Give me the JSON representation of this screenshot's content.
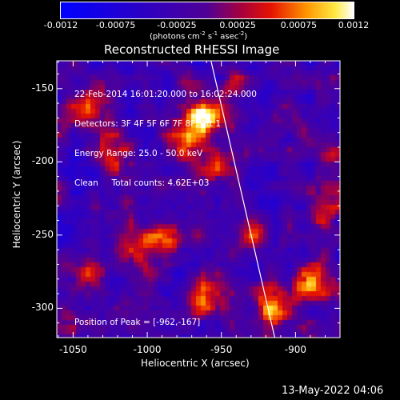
{
  "colors": {
    "background": "#000000",
    "text": "#ffffff",
    "frame": "#ffffff",
    "limb": "#ffffff"
  },
  "colorbar": {
    "tick_labels": [
      "-0.0012",
      "-0.00075",
      "-0.00025",
      "0.00025",
      "0.00075",
      "0.0012"
    ],
    "unit": {
      "prefix": "(photons cm",
      "exp1": "-2",
      "mid1": " s",
      "exp2": "-1",
      "mid2": " asec",
      "exp3": "-2",
      "suffix": ")"
    },
    "range": [
      -0.0012,
      0.0012
    ]
  },
  "chart_data": {
    "type": "heatmap",
    "title": "Reconstructed RHESSI Image",
    "xlabel": "Heliocentric X (arcsec)",
    "ylabel": "Heliocentric Y (arcsec)",
    "xlim": [
      -1061,
      -870
    ],
    "ylim": [
      -320,
      -131
    ],
    "x_ticks": [
      -1050,
      -1000,
      -950,
      -900
    ],
    "x_tick_labels": [
      "-1050",
      "-1000",
      "-950",
      "-900"
    ],
    "y_ticks": [
      -150,
      -200,
      -250,
      -300
    ],
    "y_tick_labels": [
      "-150",
      "-200",
      "-250",
      "-300"
    ],
    "info_lines": [
      "22-Feb-2014 16:01:20.000 to 16:02:24.000",
      "Detectors: 3F 4F 5F 6F 7F 8F, Att 1",
      "Energy Range: 25.0 - 50.0 keV",
      "Clean     Total counts: 4.62E+03"
    ],
    "peak_label": "Position of Peak = [-962,-167]",
    "peak_position": [
      -962,
      -167
    ],
    "limb_line": [
      [
        -957,
        -131
      ],
      [
        -914,
        -320
      ]
    ],
    "intensity_sources": [
      {
        "x": -962,
        "y": -170,
        "amp": 1.25,
        "sigma": 10
      },
      {
        "x": -975,
        "y": -190,
        "amp": 0.9,
        "sigma": 9
      },
      {
        "x": -955,
        "y": -205,
        "amp": 0.7,
        "sigma": 8
      },
      {
        "x": -1040,
        "y": -165,
        "amp": 0.8,
        "sigma": 10
      },
      {
        "x": -1025,
        "y": -195,
        "amp": 0.7,
        "sigma": 9
      },
      {
        "x": -1010,
        "y": -260,
        "amp": 0.95,
        "sigma": 10
      },
      {
        "x": -985,
        "y": -250,
        "amp": 0.75,
        "sigma": 9
      },
      {
        "x": -1040,
        "y": -275,
        "amp": 0.65,
        "sigma": 8
      },
      {
        "x": -960,
        "y": -290,
        "amp": 0.85,
        "sigma": 10
      },
      {
        "x": -930,
        "y": -250,
        "amp": 0.75,
        "sigma": 9
      },
      {
        "x": -915,
        "y": -300,
        "amp": 1.05,
        "sigma": 11
      },
      {
        "x": -888,
        "y": -280,
        "amp": 1.0,
        "sigma": 10
      },
      {
        "x": -882,
        "y": -230,
        "amp": 0.7,
        "sigma": 9
      },
      {
        "x": -905,
        "y": -170,
        "amp": 0.5,
        "sigma": 8
      },
      {
        "x": -940,
        "y": -150,
        "amp": 0.5,
        "sigma": 7
      },
      {
        "x": -1055,
        "y": -310,
        "amp": 0.45,
        "sigma": 8
      },
      {
        "x": -870,
        "y": -200,
        "amp": 0.55,
        "sigma": 8
      }
    ]
  },
  "footer": {
    "date": "13-May-2022 04:06"
  }
}
